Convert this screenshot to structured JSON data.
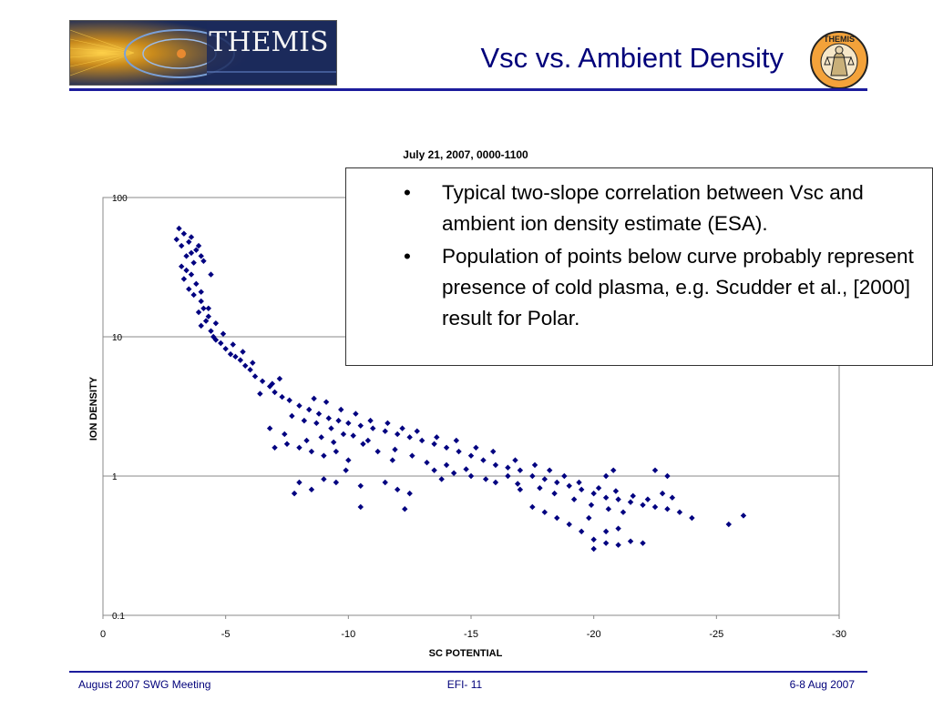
{
  "header": {
    "logo_text": "THEMIS",
    "title": "Vsc vs. Ambient Density",
    "seal_text": "THEMIS"
  },
  "bullets": [
    "Typical two-slope correlation between Vsc and ambient ion density estimate (ESA).",
    "Population of points below curve probably represent presence of cold plasma, e.g. Scudder et al., [2000] result for Polar."
  ],
  "footer": {
    "left": "August 2007 SWG Meeting",
    "center": "EFI- 11",
    "right": "6-8 Aug 2007"
  },
  "colors": {
    "accent": "#1c1c9c",
    "title": "#00007a",
    "points": "#000080"
  },
  "chart_data": {
    "type": "scatter",
    "title": "July 21, 2007, 0000-1100",
    "xlabel": "SC POTENTIAL",
    "ylabel": "ION DENSITY",
    "xlim": [
      0,
      -30
    ],
    "ylim": [
      0.1,
      100
    ],
    "yscale": "log",
    "x_ticks": [
      "0",
      "-5",
      "-10",
      "-15",
      "-20",
      "-25",
      "-30"
    ],
    "y_ticks": [
      "100",
      "10",
      "1",
      "0.1"
    ],
    "grid": "horizontal",
    "legend": "none",
    "series": [
      {
        "marker": "diamond",
        "color": "#000080",
        "points": [
          [
            -3.1,
            60
          ],
          [
            -3.0,
            50
          ],
          [
            -3.2,
            45
          ],
          [
            -3.3,
            55
          ],
          [
            -3.5,
            48
          ],
          [
            -3.6,
            40
          ],
          [
            -3.8,
            42
          ],
          [
            -4.0,
            38
          ],
          [
            -3.2,
            32
          ],
          [
            -3.4,
            30
          ],
          [
            -3.3,
            26
          ],
          [
            -3.6,
            28
          ],
          [
            -3.5,
            22
          ],
          [
            -3.8,
            24
          ],
          [
            -3.7,
            20
          ],
          [
            -4.0,
            18
          ],
          [
            -3.9,
            15
          ],
          [
            -4.1,
            16
          ],
          [
            -4.2,
            13
          ],
          [
            -4.0,
            12
          ],
          [
            -4.3,
            14
          ],
          [
            -4.4,
            11
          ],
          [
            -4.5,
            10
          ],
          [
            -4.6,
            9.5
          ],
          [
            -4.8,
            9
          ],
          [
            -5.0,
            8.2
          ],
          [
            -5.2,
            7.5
          ],
          [
            -5.4,
            7.2
          ],
          [
            -5.6,
            6.8
          ],
          [
            -5.8,
            6.2
          ],
          [
            -6.0,
            5.8
          ],
          [
            -6.2,
            5.2
          ],
          [
            -6.5,
            4.8
          ],
          [
            -6.8,
            4.4
          ],
          [
            -7.0,
            4.0
          ],
          [
            -7.3,
            3.7
          ],
          [
            -7.6,
            3.5
          ],
          [
            -8.0,
            3.2
          ],
          [
            -8.4,
            3.0
          ],
          [
            -8.8,
            2.8
          ],
          [
            -9.2,
            2.6
          ],
          [
            -9.6,
            2.5
          ],
          [
            -10.0,
            2.4
          ],
          [
            -10.5,
            2.3
          ],
          [
            -11.0,
            2.2
          ],
          [
            -11.5,
            2.1
          ],
          [
            -12.0,
            2.0
          ],
          [
            -12.5,
            1.9
          ],
          [
            -13.0,
            1.8
          ],
          [
            -13.5,
            1.7
          ],
          [
            -14.0,
            1.6
          ],
          [
            -14.5,
            1.5
          ],
          [
            -15.0,
            1.4
          ],
          [
            -15.5,
            1.3
          ],
          [
            -16.0,
            1.2
          ],
          [
            -16.5,
            1.15
          ],
          [
            -17.0,
            1.1
          ],
          [
            -17.5,
            1.0
          ],
          [
            -18.0,
            0.95
          ],
          [
            -18.5,
            0.9
          ],
          [
            -19.0,
            0.85
          ],
          [
            -19.5,
            0.8
          ],
          [
            -20.0,
            0.75
          ],
          [
            -20.5,
            0.7
          ],
          [
            -21.0,
            0.68
          ],
          [
            -21.5,
            0.65
          ],
          [
            -22.0,
            0.62
          ],
          [
            -22.5,
            0.6
          ],
          [
            -23.0,
            0.58
          ],
          [
            -23.5,
            0.55
          ],
          [
            -24.0,
            0.5
          ],
          [
            -25.5,
            0.45
          ],
          [
            -26.1,
            0.52
          ],
          [
            -7.0,
            1.6
          ],
          [
            -7.5,
            1.7
          ],
          [
            -8.0,
            1.6
          ],
          [
            -8.5,
            1.5
          ],
          [
            -9.0,
            1.4
          ],
          [
            -9.5,
            1.5
          ],
          [
            -10.0,
            1.3
          ],
          [
            -8.0,
            0.9
          ],
          [
            -8.5,
            0.8
          ],
          [
            -9.0,
            0.95
          ],
          [
            -9.5,
            0.9
          ],
          [
            -10.5,
            0.85
          ],
          [
            -11.5,
            0.9
          ],
          [
            -12.0,
            0.8
          ],
          [
            -12.5,
            0.75
          ],
          [
            -7.8,
            0.75
          ],
          [
            -10.5,
            0.6
          ],
          [
            -12.3,
            0.58
          ],
          [
            -13.5,
            1.1
          ],
          [
            -14.0,
            1.2
          ],
          [
            -15.0,
            1.0
          ],
          [
            -16.0,
            0.9
          ],
          [
            -17.0,
            0.8
          ],
          [
            -17.5,
            0.6
          ],
          [
            -18.0,
            0.55
          ],
          [
            -18.5,
            0.5
          ],
          [
            -19.0,
            0.45
          ],
          [
            -19.5,
            0.4
          ],
          [
            -20.0,
            0.35
          ],
          [
            -20.5,
            0.33
          ],
          [
            -21.0,
            0.32
          ],
          [
            -21.5,
            0.34
          ],
          [
            -22.0,
            0.33
          ],
          [
            -20.0,
            0.3
          ],
          [
            -20.5,
            0.4
          ],
          [
            -21.0,
            0.42
          ],
          [
            -19.8,
            0.5
          ],
          [
            -22.8,
            0.75
          ],
          [
            -23.2,
            0.7
          ],
          [
            -23.0,
            1.0
          ],
          [
            -22.5,
            1.1
          ],
          [
            -20.8,
            1.1
          ],
          [
            -20.5,
            1.0
          ],
          [
            -18.2,
            1.1
          ],
          [
            -16.5,
            1.0
          ],
          [
            -14.3,
            1.05
          ],
          [
            -13.8,
            0.95
          ],
          [
            -11.8,
            1.3
          ],
          [
            -11.2,
            1.5
          ],
          [
            -10.8,
            1.8
          ],
          [
            -9.8,
            2.0
          ],
          [
            -9.3,
            2.2
          ],
          [
            -8.7,
            2.4
          ],
          [
            -8.2,
            2.5
          ],
          [
            -7.7,
            2.7
          ],
          [
            -6.4,
            3.9
          ],
          [
            -6.9,
            4.6
          ],
          [
            -7.2,
            5.0
          ],
          [
            -6.1,
            6.5
          ],
          [
            -5.7,
            7.8
          ],
          [
            -5.3,
            8.8
          ],
          [
            -4.9,
            10.5
          ],
          [
            -4.6,
            12.5
          ],
          [
            -4.3,
            16
          ],
          [
            -4.0,
            21
          ],
          [
            -3.7,
            34
          ],
          [
            -3.4,
            38
          ],
          [
            -3.6,
            52
          ],
          [
            -3.9,
            45
          ],
          [
            -4.1,
            35
          ],
          [
            -4.4,
            28
          ],
          [
            -8.6,
            3.6
          ],
          [
            -9.1,
            3.4
          ],
          [
            -9.7,
            3.0
          ],
          [
            -10.3,
            2.8
          ],
          [
            -10.9,
            2.5
          ],
          [
            -11.6,
            2.4
          ],
          [
            -12.2,
            2.2
          ],
          [
            -12.8,
            2.1
          ],
          [
            -13.6,
            1.9
          ],
          [
            -14.4,
            1.8
          ],
          [
            -15.2,
            1.6
          ],
          [
            -15.9,
            1.5
          ],
          [
            -16.8,
            1.3
          ],
          [
            -17.6,
            1.2
          ],
          [
            -18.8,
            1.0
          ],
          [
            -19.4,
            0.9
          ],
          [
            -20.2,
            0.82
          ],
          [
            -20.9,
            0.78
          ],
          [
            -21.6,
            0.72
          ],
          [
            -22.2,
            0.68
          ],
          [
            -21.2,
            0.55
          ],
          [
            -20.6,
            0.58
          ],
          [
            -19.9,
            0.62
          ],
          [
            -19.2,
            0.68
          ],
          [
            -18.4,
            0.75
          ],
          [
            -17.8,
            0.82
          ],
          [
            -16.9,
            0.88
          ],
          [
            -15.6,
            0.95
          ],
          [
            -14.8,
            1.12
          ],
          [
            -13.2,
            1.25
          ],
          [
            -12.6,
            1.4
          ],
          [
            -11.9,
            1.55
          ],
          [
            -10.6,
            1.7
          ],
          [
            -10.2,
            1.95
          ],
          [
            -9.4,
            1.75
          ],
          [
            -8.9,
            1.9
          ],
          [
            -8.3,
            1.8
          ],
          [
            -7.4,
            2.0
          ],
          [
            -6.8,
            2.2
          ],
          [
            -9.9,
            1.1
          ]
        ]
      }
    ]
  }
}
